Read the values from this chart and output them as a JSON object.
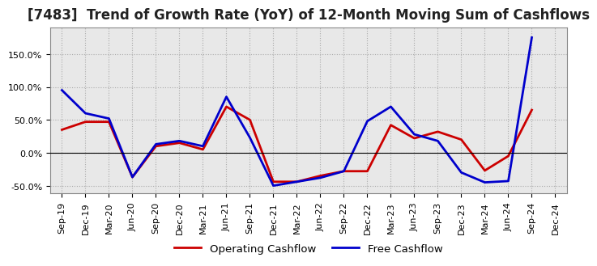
{
  "title": "[7483]  Trend of Growth Rate (YoY) of 12-Month Moving Sum of Cashflows",
  "labels": [
    "Sep-19",
    "Dec-19",
    "Mar-20",
    "Jun-20",
    "Sep-20",
    "Dec-20",
    "Mar-21",
    "Jun-21",
    "Sep-21",
    "Dec-21",
    "Mar-22",
    "Jun-22",
    "Sep-22",
    "Dec-22",
    "Mar-23",
    "Jun-23",
    "Sep-23",
    "Dec-23",
    "Mar-24",
    "Jun-24",
    "Sep-24",
    "Dec-24"
  ],
  "operating_cashflow": [
    0.35,
    0.47,
    0.47,
    -0.37,
    0.1,
    0.15,
    0.05,
    0.7,
    0.5,
    -0.44,
    -0.44,
    -0.35,
    -0.28,
    -0.28,
    0.42,
    0.22,
    0.32,
    0.2,
    -0.27,
    -0.05,
    0.65,
    null
  ],
  "free_cashflow": [
    0.95,
    0.6,
    0.52,
    -0.37,
    0.13,
    0.18,
    0.1,
    0.85,
    0.23,
    -0.5,
    -0.44,
    -0.38,
    -0.28,
    0.48,
    0.7,
    0.28,
    0.18,
    -0.3,
    -0.45,
    -0.43,
    1.75,
    null
  ],
  "operating_color": "#cc0000",
  "free_color": "#0000cc",
  "ylim": [
    -0.62,
    1.9
  ],
  "yticks": [
    -0.5,
    0.0,
    0.5,
    1.0,
    1.5
  ],
  "ytick_labels": [
    "-50.0%",
    "0.0%",
    "50.0%",
    "100.0%",
    "150.0%"
  ],
  "plot_bgcolor": "#e8e8e8",
  "fig_bgcolor": "#ffffff",
  "grid_color": "#aaaaaa",
  "title_fontsize": 12,
  "axis_fontsize": 8,
  "legend_labels": [
    "Operating Cashflow",
    "Free Cashflow"
  ],
  "linewidth": 2.0
}
